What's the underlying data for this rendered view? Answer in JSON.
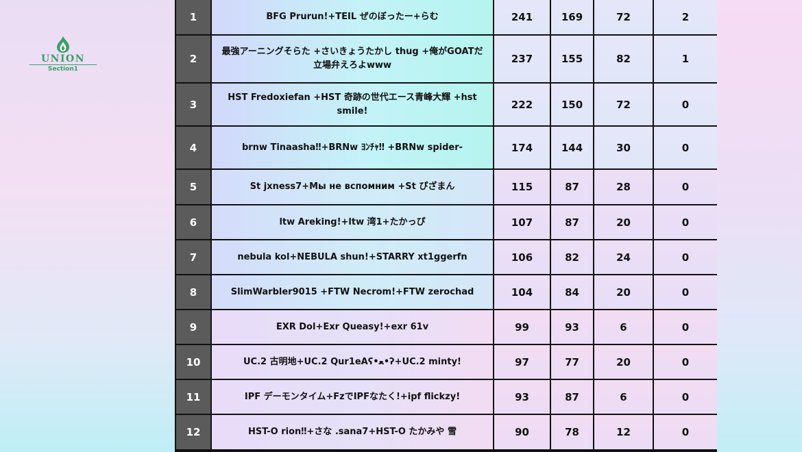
{
  "logo": {
    "word": "UNION",
    "subtitle": "Section1",
    "icon": "flame-drop-icon",
    "color": "#3aa067"
  },
  "rows": [
    {
      "rank": "1",
      "name": "BFG Prurun!+TEIL ぜのぼったー+らむ",
      "a": "241",
      "b": "169",
      "c": "72",
      "d": "2"
    },
    {
      "rank": "2",
      "name": "最強アーニングそらた +さいきょうたかし thug +俺がGOATだ 立場弁えろよwww",
      "a": "237",
      "b": "155",
      "c": "82",
      "d": "1"
    },
    {
      "rank": "3",
      "name": "HST Fredoxiefan +HST 奇跡の世代エース青峰大輝 +hst smile!",
      "a": "222",
      "b": "150",
      "c": "72",
      "d": "0"
    },
    {
      "rank": "4",
      "name": "brnw Tinaasha‼+BRNw ﾖﾝﾁｬ‼ +BRNw spider-",
      "a": "174",
      "b": "144",
      "c": "30",
      "d": "0"
    },
    {
      "rank": "5",
      "name": "St jxness7+Мы не вспомним +St ぴざまん",
      "a": "115",
      "b": "87",
      "c": "28",
      "d": "0"
    },
    {
      "rank": "6",
      "name": "ltw Areking!+ltw 湾1+たかっぴ",
      "a": "107",
      "b": "87",
      "c": "20",
      "d": "0"
    },
    {
      "rank": "7",
      "name": "nebula kol+NEBULA shun!+STARRY xt1ggerfn",
      "a": "106",
      "b": "82",
      "c": "24",
      "d": "0"
    },
    {
      "rank": "8",
      "name": "SlimWarbler9015 +FTW Necrom!+FTW zerochad",
      "a": "104",
      "b": "84",
      "c": "20",
      "d": "0"
    },
    {
      "rank": "9",
      "name": "EXR Dol+Exr Queasy!+exr 61v",
      "a": "99",
      "b": "93",
      "c": "6",
      "d": "0"
    },
    {
      "rank": "10",
      "name": "UC.2 古明地+UC.2 Qur1eAʕ•ﻌ•ʔ+UC.2 minty!",
      "a": "97",
      "b": "77",
      "c": "20",
      "d": "0"
    },
    {
      "rank": "11",
      "name": "IPF デーモンタイム+FzでIPFなたく!+ipf flickzy!",
      "a": "93",
      "b": "87",
      "c": "6",
      "d": "0"
    },
    {
      "rank": "12",
      "name": "HST-O rion‼+さな .sana7+HST-O たかみや 雪",
      "a": "90",
      "b": "78",
      "c": "12",
      "d": "0"
    }
  ]
}
